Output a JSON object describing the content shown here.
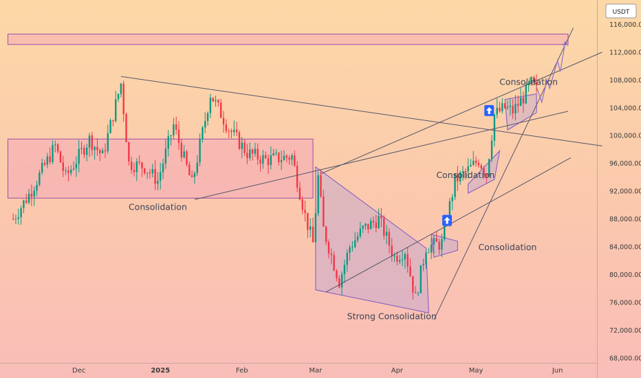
{
  "chart_data": {
    "type": "candlestick",
    "currency_badge": "USDT",
    "y_ticks": [
      "116,000.00",
      "112,000.00",
      "108,000.00",
      "104,000.00",
      "100,000.00",
      "96,000.00",
      "92,000.00",
      "88,000.00",
      "84,000.00",
      "80,000.00",
      "76,000.00",
      "72,000.00",
      "68,000.00"
    ],
    "y_tick_values": [
      116000,
      112000,
      108000,
      104000,
      100000,
      96000,
      92000,
      88000,
      84000,
      80000,
      76000,
      72000,
      68000
    ],
    "ylim": [
      67300,
      119500
    ],
    "x_ticks": [
      {
        "label": "Dec",
        "date": "2024-12-01",
        "bold": false
      },
      {
        "label": "2025",
        "date": "2025-01-01",
        "bold": true
      },
      {
        "label": "Feb",
        "date": "2025-02-01",
        "bold": false
      },
      {
        "label": "Mar",
        "date": "2025-03-01",
        "bold": false
      },
      {
        "label": "Apr",
        "date": "2025-04-01",
        "bold": false
      },
      {
        "label": "May",
        "date": "2025-05-01",
        "bold": false
      },
      {
        "label": "Jun",
        "date": "2025-06-01",
        "bold": false
      }
    ],
    "xlim": [
      "2024-11-01",
      "2025-06-16"
    ],
    "colors": {
      "up": "#089981",
      "down": "#f23645",
      "pattern_stroke": "#7e57c2",
      "pattern_fill": "#b39ddb",
      "trendline": "#55556a",
      "badge": "#2962ff"
    },
    "price_path": [
      {
        "date": "2024-11-06",
        "close": 88000
      },
      {
        "date": "2024-11-12",
        "close": 91500
      },
      {
        "date": "2024-11-22",
        "close": 98500
      },
      {
        "date": "2024-11-26",
        "close": 94000
      },
      {
        "date": "2024-12-05",
        "close": 99500
      },
      {
        "date": "2024-12-10",
        "close": 97000
      },
      {
        "date": "2024-12-17",
        "close": 107500
      },
      {
        "date": "2024-12-20",
        "close": 96000
      },
      {
        "date": "2024-12-26",
        "close": 95500
      },
      {
        "date": "2024-12-31",
        "close": 93500
      },
      {
        "date": "2025-01-06",
        "close": 101500
      },
      {
        "date": "2025-01-13",
        "close": 93000
      },
      {
        "date": "2025-01-20",
        "close": 106000
      },
      {
        "date": "2025-01-27",
        "close": 101000
      },
      {
        "date": "2025-02-03",
        "close": 97500
      },
      {
        "date": "2025-02-10",
        "close": 96500
      },
      {
        "date": "2025-02-20",
        "close": 97000
      },
      {
        "date": "2025-02-25",
        "close": 88500
      },
      {
        "date": "2025-02-28",
        "close": 84500
      },
      {
        "date": "2025-03-02",
        "close": 94000
      },
      {
        "date": "2025-03-04",
        "close": 86500
      },
      {
        "date": "2025-03-10",
        "close": 79000
      },
      {
        "date": "2025-03-14",
        "close": 84000
      },
      {
        "date": "2025-03-19",
        "close": 86500
      },
      {
        "date": "2025-03-25",
        "close": 88000
      },
      {
        "date": "2025-03-31",
        "close": 82500
      },
      {
        "date": "2025-04-04",
        "close": 83500
      },
      {
        "date": "2025-04-08",
        "close": 76500
      },
      {
        "date": "2025-04-12",
        "close": 84000
      },
      {
        "date": "2025-04-18",
        "close": 84500
      },
      {
        "date": "2025-04-23",
        "close": 93500
      },
      {
        "date": "2025-04-28",
        "close": 95000
      },
      {
        "date": "2025-05-02",
        "close": 96500
      },
      {
        "date": "2025-05-05",
        "close": 94500
      },
      {
        "date": "2025-05-08",
        "close": 103000
      },
      {
        "date": "2025-05-12",
        "close": 104000
      },
      {
        "date": "2025-05-15",
        "close": 103500
      },
      {
        "date": "2025-05-19",
        "close": 105500
      },
      {
        "date": "2025-05-22",
        "close": 107500
      },
      {
        "date": "2025-05-24",
        "close": 106500
      }
    ],
    "zones": [
      {
        "name": "resistance-zone",
        "date_start": "2024-11-04",
        "date_end": "2025-06-05",
        "price_top": 114600,
        "price_bottom": 113100
      },
      {
        "name": "dec-feb-range",
        "date_start": "2024-11-04",
        "date_end": "2025-02-28",
        "price_top": 99500,
        "price_bottom": 91000
      }
    ],
    "patterns": [
      {
        "name": "falling-wedge",
        "points": [
          [
            "2025-03-01",
            95500
          ],
          [
            "2025-04-12",
            83800
          ],
          [
            "2025-04-13",
            74500
          ],
          [
            "2025-03-01",
            77800
          ]
        ]
      },
      {
        "name": "flag-1",
        "points": [
          [
            "2025-04-14",
            85800
          ],
          [
            "2025-04-24",
            84800
          ],
          [
            "2025-04-24",
            83500
          ],
          [
            "2025-04-15",
            82500
          ]
        ]
      },
      {
        "name": "flag-2",
        "points": [
          [
            "2025-04-28",
            93000
          ],
          [
            "2025-05-10",
            97800
          ],
          [
            "2025-05-08",
            93700
          ],
          [
            "2025-04-28",
            91700
          ]
        ]
      },
      {
        "name": "flag-3",
        "points": [
          [
            "2025-05-12",
            105200
          ],
          [
            "2025-05-24",
            106000
          ],
          [
            "2025-05-24",
            103300
          ],
          [
            "2025-05-13",
            100800
          ]
        ]
      }
    ],
    "trendlines": [
      {
        "name": "descending-resistance",
        "from": [
          "2024-12-17",
          108500
        ],
        "to": [
          "2025-06-18",
          98500
        ]
      },
      {
        "name": "rising-support-1",
        "from": [
          "2025-01-14",
          90800
        ],
        "to": [
          "2025-06-05",
          103500
        ]
      },
      {
        "name": "rising-channel-upper",
        "from": [
          "2025-03-03",
          94500
        ],
        "to": [
          "2025-06-18",
          112000
        ]
      },
      {
        "name": "rising-channel-lower",
        "from": [
          "2025-03-05",
          77500
        ],
        "to": [
          "2025-06-06",
          96800
        ]
      },
      {
        "name": "steep-support",
        "from": [
          "2025-04-15",
          73500
        ],
        "to": [
          "2025-06-07",
          115500
        ]
      }
    ],
    "projection": [
      [
        "2025-05-24",
        107000
      ],
      [
        "2025-05-26",
        104800
      ],
      [
        "2025-05-28",
        108000
      ],
      [
        "2025-05-29",
        106800
      ],
      [
        "2025-06-01",
        110800
      ],
      [
        "2025-06-02",
        109200
      ],
      [
        "2025-06-04",
        113500
      ]
    ],
    "annotations": [
      {
        "name": "consolidation-1",
        "text": "Consolidation",
        "date": "2024-12-31",
        "price": 89300
      },
      {
        "name": "strong-consolidation",
        "text": "Strong Consolidation",
        "date": "2025-03-30",
        "price": 73600
      },
      {
        "name": "consolidation-2",
        "text": "Consolidation",
        "date": "2025-04-27",
        "price": 93900
      },
      {
        "name": "consolidation-3",
        "text": "Consolidation",
        "date": "2025-05-13",
        "price": 83500
      },
      {
        "name": "consolidation-4",
        "text": "Consolidation",
        "date": "2025-05-21",
        "price": 107300
      }
    ],
    "markers": [
      {
        "name": "arrow-up-marker-1",
        "date": "2025-04-20",
        "price": 87800
      },
      {
        "name": "arrow-up-marker-2",
        "date": "2025-05-06",
        "price": 103600
      }
    ]
  }
}
